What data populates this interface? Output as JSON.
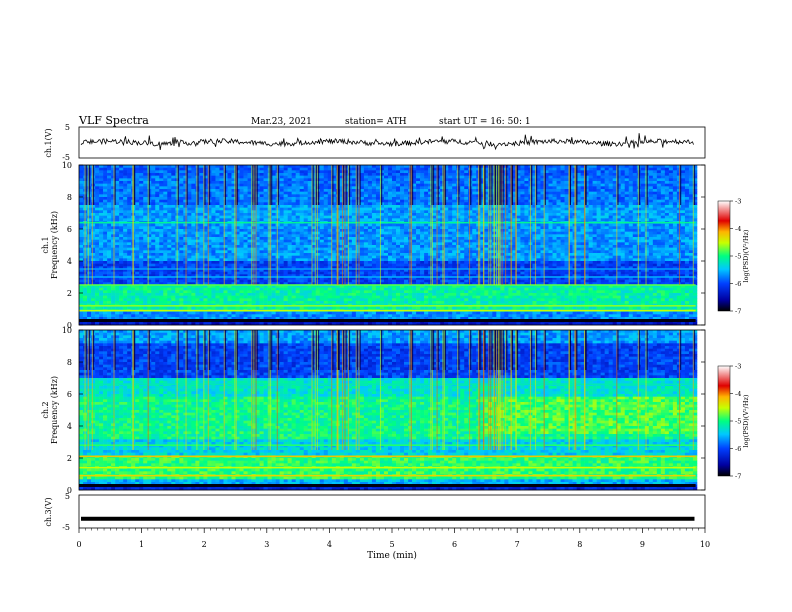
{
  "header": {
    "title": "VLF  Spectra",
    "date": "Mar.23, 2021",
    "station": "station= ATH",
    "start": "start  UT  =    16: 50: 1"
  },
  "chart_data": [
    {
      "panel": "ch1-waveform",
      "type": "line",
      "ylabel": "ch.1(V)",
      "yticks": [
        "5",
        "-5"
      ],
      "ylim": [
        -5,
        5
      ],
      "series": [
        {
          "mean_level": 0.0,
          "style": "noisy black trace"
        }
      ]
    },
    {
      "panel": "ch1-spectrogram",
      "type": "heatmap",
      "ylabel_channel": "ch.1",
      "ylabel": "Frequency  (kHz)",
      "yticks": [
        "0",
        "2",
        "4",
        "6",
        "8",
        "10"
      ],
      "ylim": [
        0,
        10
      ],
      "colorbar": {
        "label": "log(PSD)(V²/Hz)",
        "ticks": [
          "-3",
          "-4",
          "-5",
          "-6",
          "-7"
        ],
        "range": [
          -7,
          -3
        ]
      }
    },
    {
      "panel": "ch2-spectrogram",
      "type": "heatmap",
      "ylabel_channel": "ch.2",
      "ylabel": "Frequency  (kHz)",
      "yticks": [
        "0",
        "2",
        "4",
        "6",
        "8",
        "10"
      ],
      "ylim": [
        0,
        10
      ],
      "colorbar": {
        "label": "log(PSD)(V²/Hz)",
        "ticks": [
          "-3",
          "-4",
          "-5",
          "-6",
          "-7"
        ],
        "range": [
          -7,
          -3
        ]
      }
    },
    {
      "panel": "ch3-waveform",
      "type": "line",
      "ylabel": "ch.3(V)",
      "yticks": [
        "5",
        "-5"
      ],
      "ylim": [
        -5,
        5
      ],
      "series": [
        {
          "mean_level": -2.2,
          "style": "thick flat black trace"
        }
      ]
    }
  ],
  "xaxis": {
    "label": "Time  (min)",
    "ticks": [
      "0",
      "1",
      "2",
      "3",
      "4",
      "5",
      "6",
      "7",
      "8",
      "9",
      "10"
    ],
    "xlim": [
      0,
      10
    ]
  },
  "colors": {
    "axis": "#000000",
    "colormap": [
      "#000000",
      "#0000a0",
      "#0040ff",
      "#00c8ff",
      "#00ff80",
      "#c8ff00",
      "#ffb400",
      "#e00000",
      "#ffffff"
    ]
  }
}
